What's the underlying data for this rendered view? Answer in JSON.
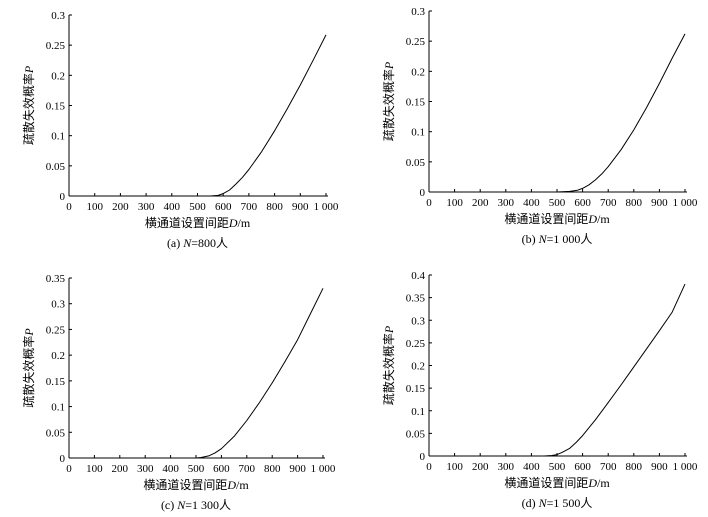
{
  "chart_data": [
    {
      "type": "line",
      "caption": "(a) N=800人",
      "caption_parts": [
        "(a) ",
        "N",
        "=800人"
      ],
      "xlabel_parts": [
        "横通道设置间距",
        "D",
        "/m"
      ],
      "ylabel_parts": [
        "疏散失效概率",
        "P"
      ],
      "xlim": [
        0,
        1000
      ],
      "ylim": [
        0,
        0.3
      ],
      "xticks": [
        0,
        100,
        200,
        300,
        400,
        500,
        600,
        700,
        800,
        900,
        1000
      ],
      "xtick_labels": [
        "0",
        "100",
        "200",
        "300",
        "400",
        "500",
        "600",
        "700",
        "800",
        "900",
        "1 000"
      ],
      "yticks": [
        0,
        0.05,
        0.1,
        0.15,
        0.2,
        0.25,
        0.3
      ],
      "ytick_labels": [
        "0",
        "0.05",
        "0.1",
        "0.15",
        "0.2",
        "0.25",
        "0.3"
      ],
      "x": [
        0,
        100,
        200,
        300,
        400,
        500,
        550,
        580,
        600,
        625,
        650,
        675,
        700,
        750,
        800,
        850,
        900,
        950,
        1000
      ],
      "y": [
        0,
        0,
        0,
        0,
        0,
        0,
        0,
        0.001,
        0.004,
        0.01,
        0.02,
        0.031,
        0.044,
        0.074,
        0.108,
        0.145,
        0.184,
        0.225,
        0.267
      ]
    },
    {
      "type": "line",
      "caption": "(b) N=1 000人",
      "caption_parts": [
        "(b) ",
        "N",
        "=1 000人"
      ],
      "xlabel_parts": [
        "横通道设置间距",
        "D",
        "/m"
      ],
      "ylabel_parts": [
        "疏散失效概率",
        "P"
      ],
      "xlim": [
        0,
        1000
      ],
      "ylim": [
        0,
        0.3
      ],
      "xticks": [
        0,
        100,
        200,
        300,
        400,
        500,
        600,
        700,
        800,
        900,
        1000
      ],
      "xtick_labels": [
        "0",
        "100",
        "200",
        "300",
        "400",
        "500",
        "600",
        "700",
        "800",
        "900",
        "1 000"
      ],
      "yticks": [
        0,
        0.05,
        0.1,
        0.15,
        0.2,
        0.25,
        0.3
      ],
      "ytick_labels": [
        "0",
        "0.05",
        "0.1",
        "0.15",
        "0.2",
        "0.25",
        "0.3"
      ],
      "x": [
        0,
        100,
        200,
        300,
        400,
        500,
        550,
        580,
        600,
        625,
        650,
        675,
        700,
        750,
        800,
        850,
        900,
        950,
        1000
      ],
      "y": [
        0,
        0,
        0,
        0,
        0,
        0,
        0.001,
        0.003,
        0.006,
        0.012,
        0.02,
        0.03,
        0.042,
        0.07,
        0.103,
        0.14,
        0.18,
        0.222,
        0.262
      ]
    },
    {
      "type": "line",
      "caption": "(c) N=1 300人",
      "caption_parts": [
        "(c) ",
        "N",
        "=1 300人"
      ],
      "xlabel_parts": [
        "横通道设置间距",
        "D",
        "/m"
      ],
      "ylabel_parts": [
        "疏散失效概率",
        "P"
      ],
      "xlim": [
        0,
        1000
      ],
      "ylim": [
        0,
        0.35
      ],
      "xticks": [
        0,
        100,
        200,
        300,
        400,
        500,
        600,
        700,
        800,
        900,
        1000
      ],
      "xtick_labels": [
        "0",
        "100",
        "200",
        "300",
        "400",
        "500",
        "600",
        "700",
        "800",
        "900",
        "1 000"
      ],
      "yticks": [
        0,
        0.05,
        0.1,
        0.15,
        0.2,
        0.25,
        0.3,
        0.35
      ],
      "ytick_labels": [
        "0",
        "0.05",
        "0.1",
        "0.15",
        "0.2",
        "0.25",
        "0.3",
        "0.35"
      ],
      "x": [
        0,
        100,
        200,
        300,
        400,
        500,
        520,
        550,
        575,
        600,
        650,
        700,
        750,
        800,
        850,
        900,
        950,
        1000
      ],
      "y": [
        0,
        0,
        0,
        0,
        0,
        0,
        0.001,
        0.004,
        0.01,
        0.018,
        0.042,
        0.073,
        0.108,
        0.146,
        0.187,
        0.23,
        0.28,
        0.33
      ]
    },
    {
      "type": "line",
      "caption": "(d) N=1 500人",
      "caption_parts": [
        "(d) ",
        "N",
        "=1 500人"
      ],
      "xlabel_parts": [
        "横通道设置间距",
        "D",
        "/m"
      ],
      "ylabel_parts": [
        "疏散失效概率",
        "P"
      ],
      "xlim": [
        0,
        1000
      ],
      "ylim": [
        0,
        0.4
      ],
      "xticks": [
        0,
        100,
        200,
        300,
        400,
        500,
        600,
        700,
        800,
        900,
        1000
      ],
      "xtick_labels": [
        "0",
        "100",
        "200",
        "300",
        "400",
        "500",
        "600",
        "700",
        "800",
        "900",
        "1 000"
      ],
      "yticks": [
        0,
        0.05,
        0.1,
        0.15,
        0.2,
        0.25,
        0.3,
        0.35,
        0.4
      ],
      "ytick_labels": [
        "0",
        "0.05",
        "0.1",
        "0.15",
        "0.2",
        "0.25",
        "0.3",
        "0.35",
        "0.4"
      ],
      "x": [
        0,
        100,
        200,
        300,
        400,
        450,
        480,
        500,
        520,
        550,
        575,
        600,
        650,
        700,
        750,
        800,
        850,
        900,
        950,
        1000
      ],
      "y": [
        0,
        0,
        0,
        0,
        0,
        0,
        0.001,
        0.003,
        0.008,
        0.017,
        0.03,
        0.045,
        0.08,
        0.118,
        0.157,
        0.197,
        0.237,
        0.277,
        0.318,
        0.38
      ]
    }
  ]
}
